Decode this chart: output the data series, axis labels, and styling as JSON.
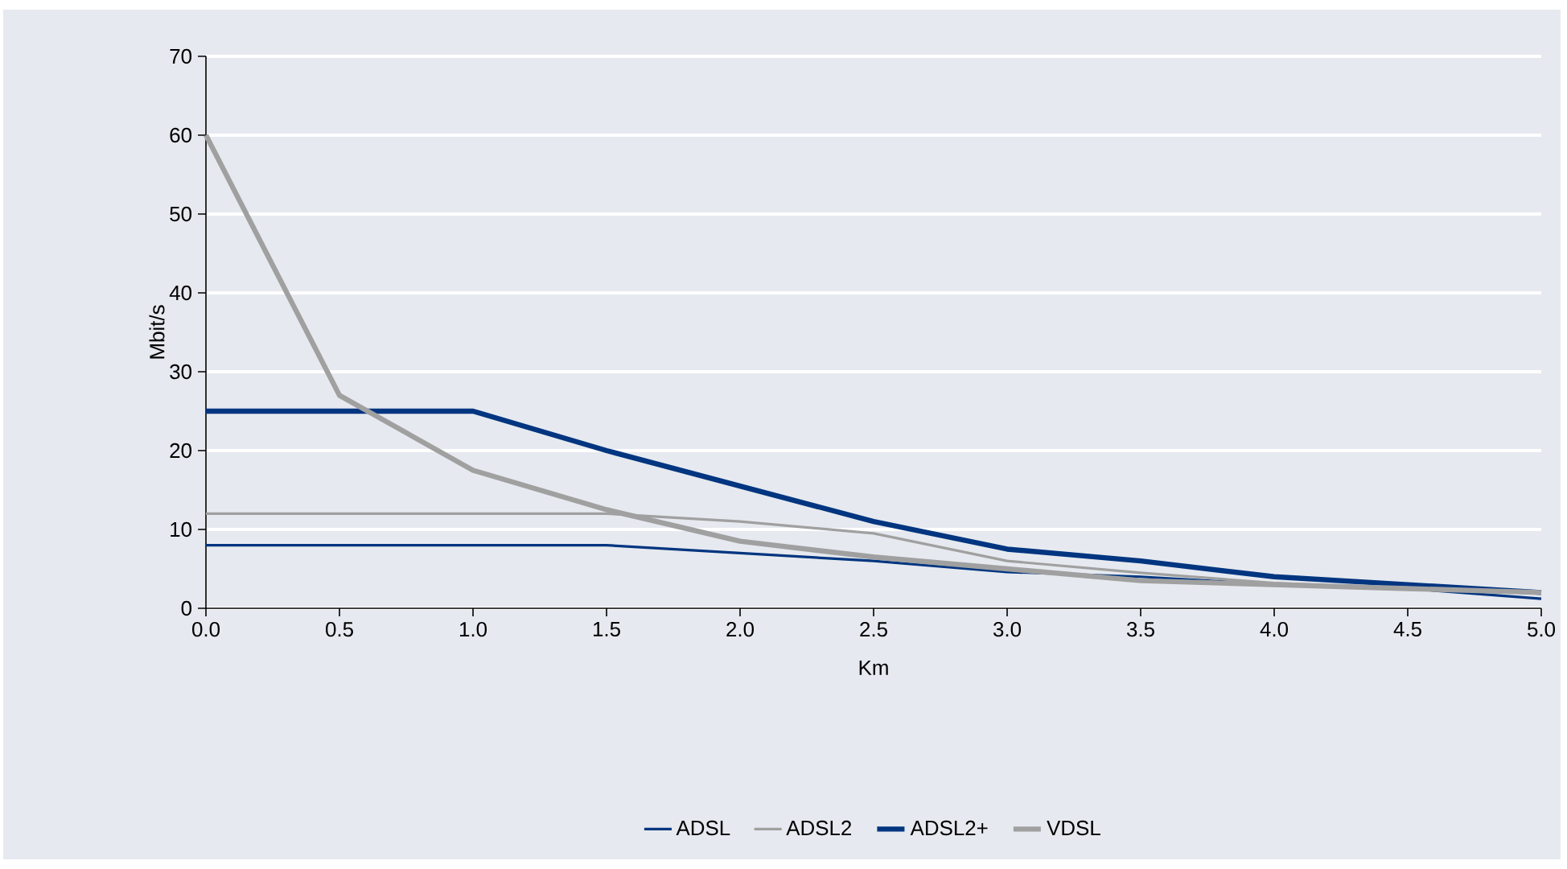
{
  "chart_data": {
    "type": "line",
    "xlabel": "Km",
    "ylabel": "Mbit/s",
    "x": [
      0,
      0.5,
      1,
      1.5,
      2,
      2.5,
      3,
      3.5,
      4,
      4.5,
      5
    ],
    "xlim": [
      0,
      5
    ],
    "xticks": [
      {
        "value": 0,
        "label": "0.0"
      },
      {
        "value": 0.5,
        "label": "0.5"
      },
      {
        "value": 1,
        "label": "1.0"
      },
      {
        "value": 1.5,
        "label": "1.5"
      },
      {
        "value": 2,
        "label": "2.0"
      },
      {
        "value": 2.5,
        "label": "2.5"
      },
      {
        "value": 3,
        "label": "3.0"
      },
      {
        "value": 3.5,
        "label": "3.5"
      },
      {
        "value": 4,
        "label": "4.0"
      },
      {
        "value": 4.5,
        "label": "4.5"
      },
      {
        "value": 5,
        "label": "5.0"
      }
    ],
    "ylim": [
      0,
      70
    ],
    "yticks": [
      0,
      10,
      20,
      30,
      40,
      50,
      60,
      70
    ],
    "grid": "y",
    "legend": "bottom",
    "marker": "none",
    "line_style": "solid",
    "series": [
      {
        "name": "ADSL",
        "color": "#003580",
        "values": [
          8,
          8,
          8,
          8,
          7,
          6,
          4.6,
          4,
          3,
          2.5,
          1.2
        ]
      },
      {
        "name": "ADSL2",
        "color": "#a0a0a0",
        "values": [
          12,
          12,
          12,
          12,
          11,
          9.5,
          6,
          4.5,
          3.2,
          2.5,
          2
        ]
      },
      {
        "name": "ADSL2+",
        "color": "#003580",
        "values": [
          25,
          25,
          25,
          20,
          15.5,
          11,
          7.5,
          6,
          4,
          3,
          2
        ]
      },
      {
        "name": "VDSL",
        "color": "#a0a0a0",
        "values": [
          60,
          27,
          17.5,
          12.5,
          8.5,
          6.5,
          5,
          3.5,
          3,
          2.5,
          2
        ]
      }
    ]
  }
}
